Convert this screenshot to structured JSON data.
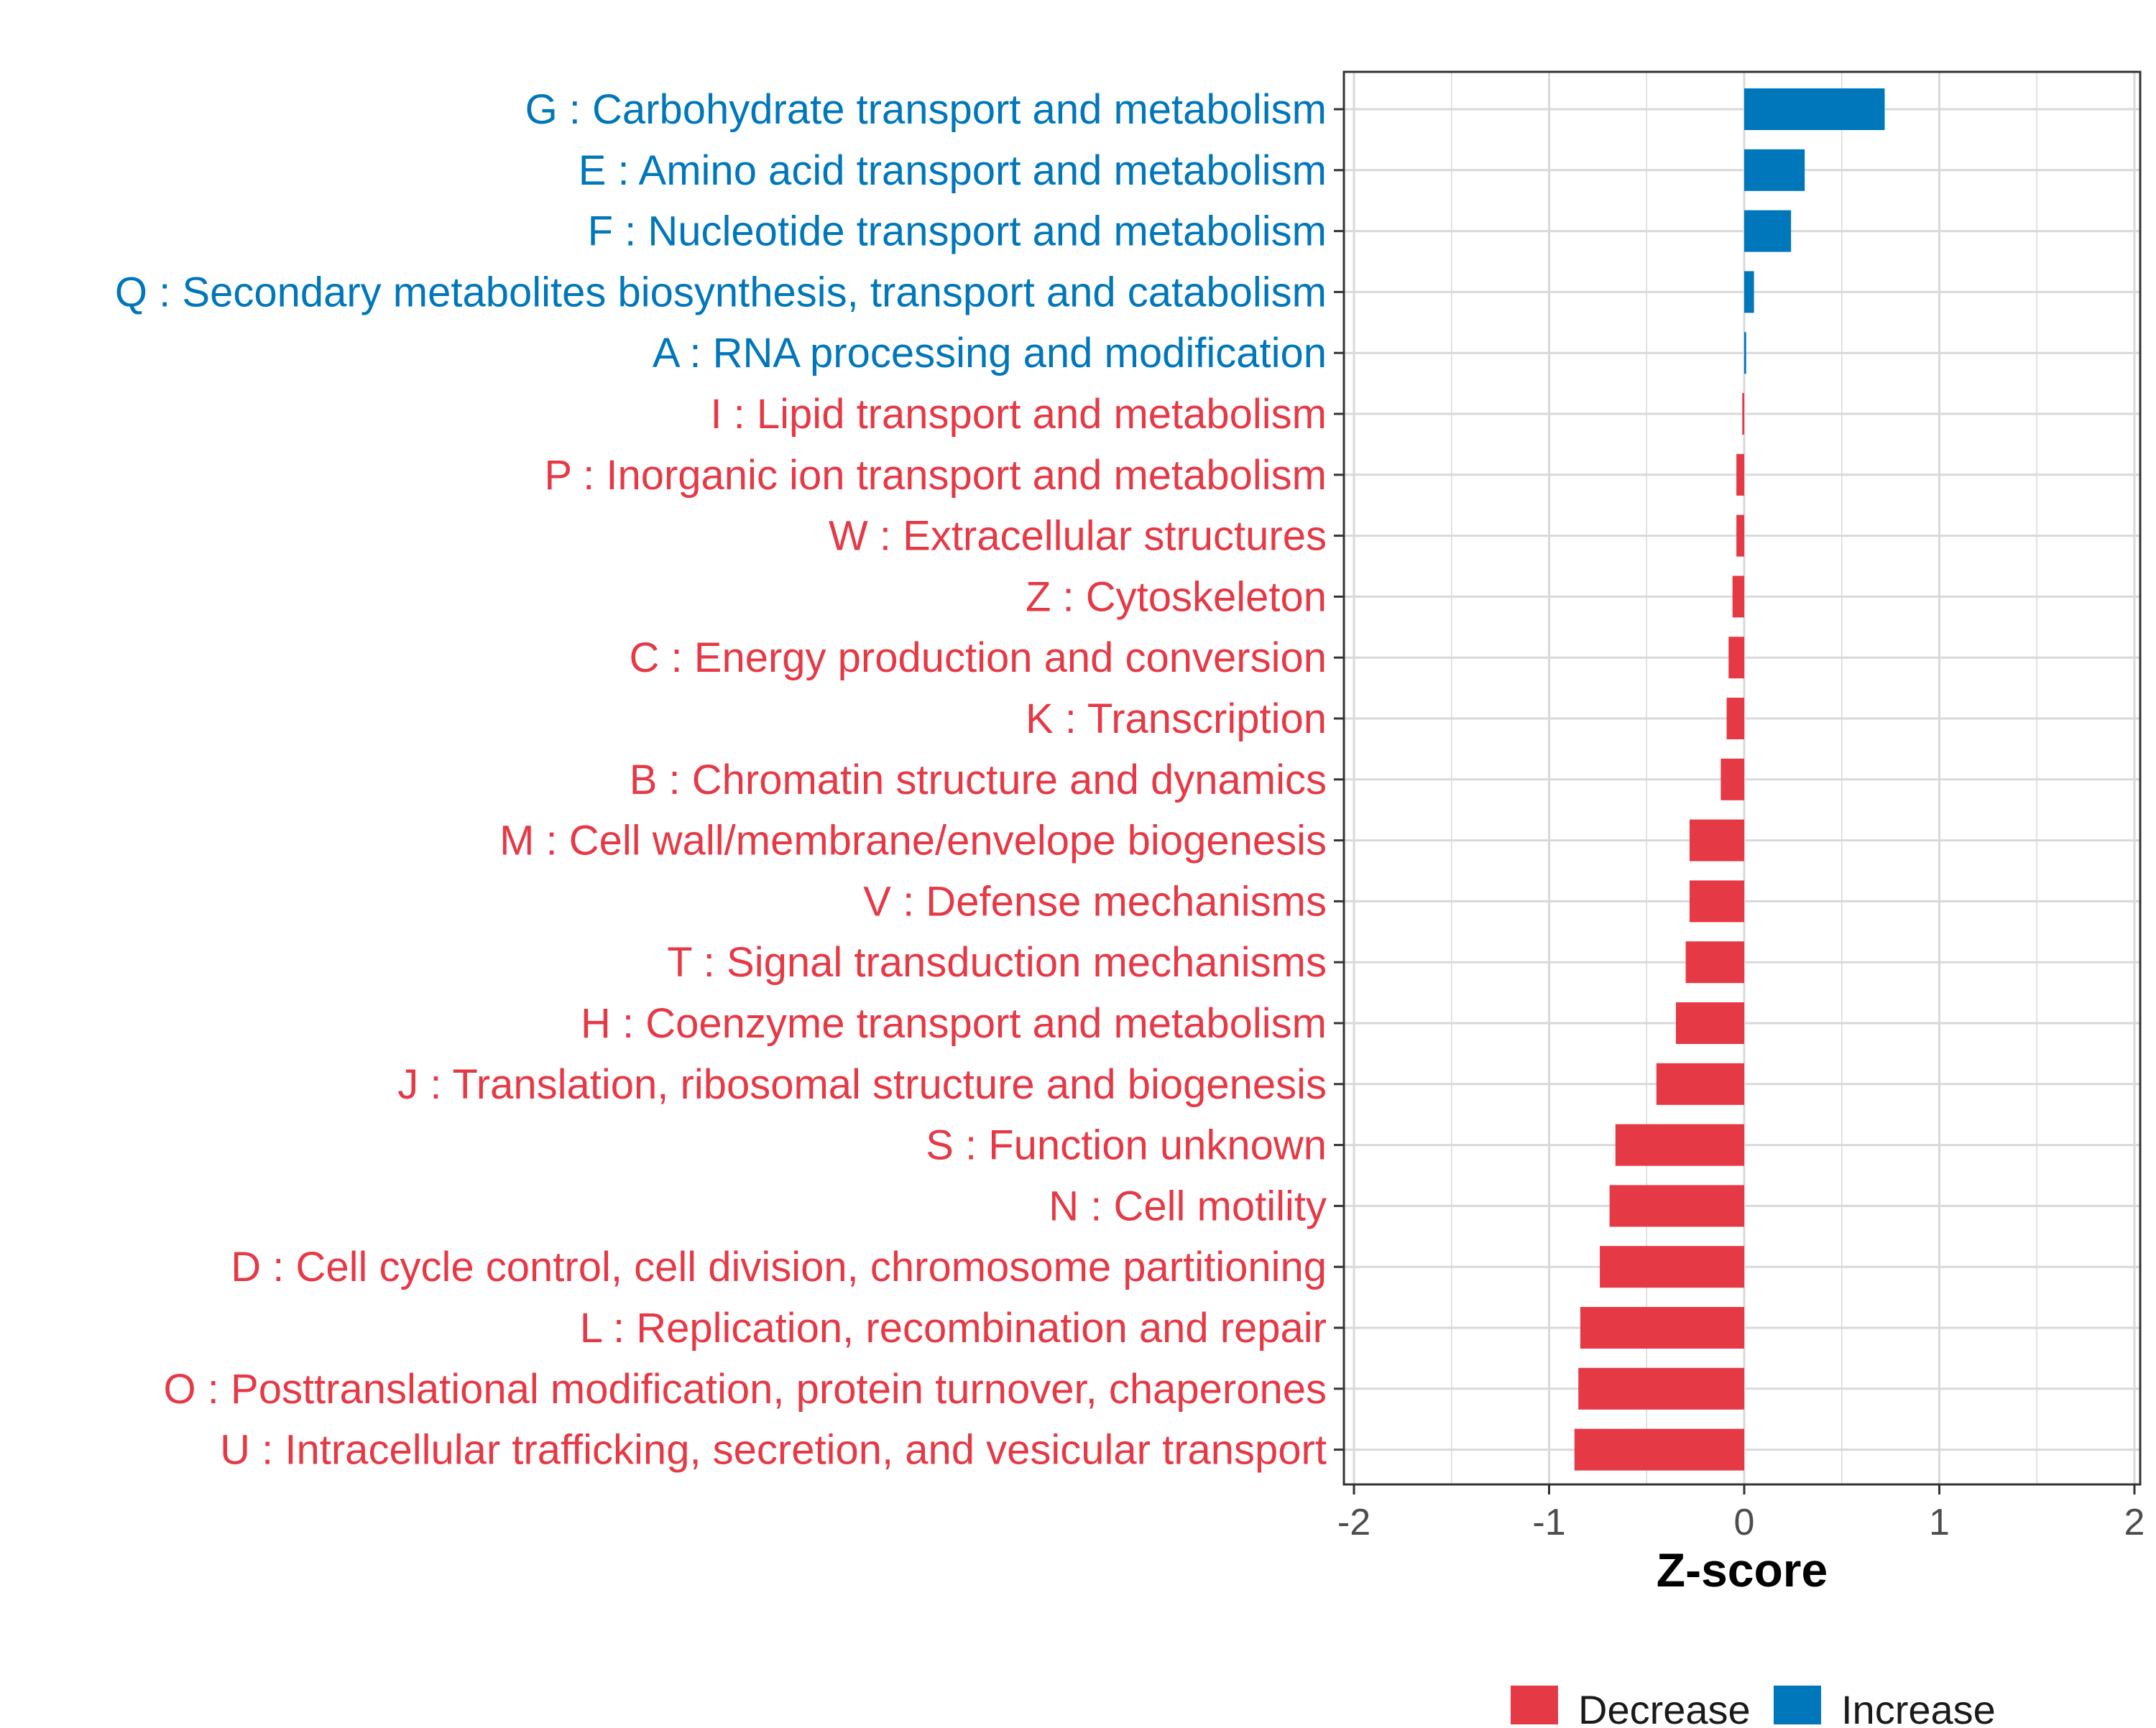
{
  "chart_data": {
    "type": "bar",
    "orientation": "horizontal",
    "xlabel": "Z-score",
    "ylabel": "",
    "xlim": [
      -2,
      2
    ],
    "xticks": [
      -2,
      -1,
      0,
      1,
      2
    ],
    "xtick_labels": [
      "-2",
      "-1",
      "0",
      "1",
      "2"
    ],
    "grid": true,
    "legend_position": "bottom",
    "colors": {
      "Decrease": "#e63946",
      "Increase": "#0077bb"
    },
    "legend": [
      {
        "name": "Decrease",
        "color": "#e63946"
      },
      {
        "name": "Increase",
        "color": "#0077bb"
      }
    ],
    "categories": [
      "G : Carbohydrate transport and metabolism",
      "E : Amino acid transport and metabolism",
      "F : Nucleotide transport and metabolism",
      "Q : Secondary metabolites biosynthesis, transport and catabolism",
      "A : RNA processing and modification",
      "I : Lipid transport and metabolism",
      "P : Inorganic ion transport and metabolism",
      "W : Extracellular structures",
      "Z : Cytoskeleton",
      "C : Energy production and conversion",
      "K : Transcription",
      "B : Chromatin structure and dynamics",
      "M : Cell wall/membrane/envelope biogenesis",
      "V : Defense mechanisms",
      "T : Signal transduction mechanisms",
      "H : Coenzyme transport and metabolism",
      "J : Translation, ribosomal structure and biogenesis",
      "S : Function unknown",
      "N : Cell motility",
      "D : Cell cycle control, cell division, chromosome partitioning",
      "L : Replication, recombination and repair",
      "O : Posttranslational modification, protein turnover, chaperones",
      "U : Intracellular trafficking, secretion, and vesicular transport"
    ],
    "values": [
      0.72,
      0.31,
      0.24,
      0.05,
      0.01,
      -0.01,
      -0.04,
      -0.04,
      -0.06,
      -0.08,
      -0.09,
      -0.12,
      -0.28,
      -0.28,
      -0.3,
      -0.35,
      -0.45,
      -0.66,
      -0.69,
      -0.74,
      -0.84,
      -0.85,
      -0.87
    ],
    "groups": [
      "Increase",
      "Increase",
      "Increase",
      "Increase",
      "Increase",
      "Decrease",
      "Decrease",
      "Decrease",
      "Decrease",
      "Decrease",
      "Decrease",
      "Decrease",
      "Decrease",
      "Decrease",
      "Decrease",
      "Decrease",
      "Decrease",
      "Decrease",
      "Decrease",
      "Decrease",
      "Decrease",
      "Decrease",
      "Decrease"
    ]
  }
}
